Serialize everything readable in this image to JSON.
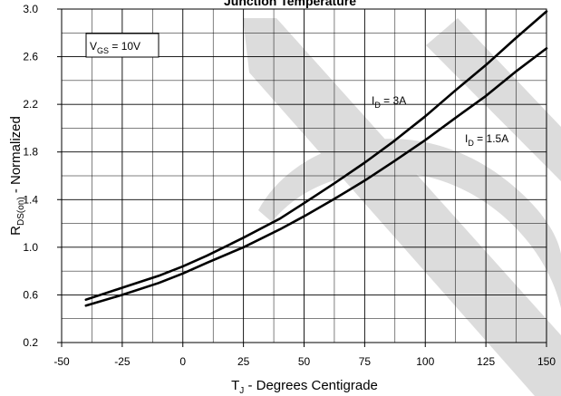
{
  "chart_data": {
    "type": "line",
    "title": "Junction Temperature",
    "xlabel": {
      "main": "T",
      "sub": "J",
      "rest": " - Degrees Centigrade"
    },
    "ylabel": {
      "main": "R",
      "sub": "DS(on)",
      "rest": " - Normalized"
    },
    "xlim": [
      -50,
      150
    ],
    "ylim": [
      0.2,
      3.0
    ],
    "x_ticks": [
      -50,
      -25,
      0,
      25,
      50,
      75,
      100,
      125,
      150
    ],
    "y_ticks": [
      0.2,
      0.6,
      1.0,
      1.4,
      1.8,
      2.2,
      2.6,
      3.0
    ],
    "x_tick_labels": [
      "-50",
      "-25",
      "0",
      "25",
      "50",
      "75",
      "100",
      "125",
      "150"
    ],
    "y_tick_labels": [
      "0.2",
      "0.6",
      "1.0",
      "1.4",
      "1.8",
      "2.2",
      "2.6",
      "3.0"
    ],
    "grid": true,
    "minor_grid_x_step": 12.5,
    "minor_grid_y_step": 0.2,
    "legend_box": {
      "main": "V",
      "sub": "GS",
      "rest": " = 10V"
    },
    "series": [
      {
        "name": "I_D = 3A",
        "label": {
          "main": "I",
          "sub": "D",
          "rest": " = 3A"
        },
        "x": [
          -40,
          -25,
          -10,
          0,
          10,
          25,
          40,
          50,
          62,
          75,
          87,
          100,
          112,
          125,
          137,
          150
        ],
        "y": [
          0.56,
          0.66,
          0.76,
          0.84,
          0.93,
          1.08,
          1.24,
          1.37,
          1.53,
          1.71,
          1.89,
          2.1,
          2.31,
          2.53,
          2.75,
          2.98
        ]
      },
      {
        "name": "I_D = 1.5A",
        "label": {
          "main": "I",
          "sub": "D",
          "rest": " = 1.5A"
        },
        "x": [
          -40,
          -25,
          -10,
          0,
          10,
          25,
          40,
          50,
          62,
          75,
          87,
          100,
          112,
          125,
          137,
          150
        ],
        "y": [
          0.51,
          0.6,
          0.7,
          0.78,
          0.87,
          1.0,
          1.15,
          1.26,
          1.4,
          1.56,
          1.72,
          1.9,
          2.08,
          2.27,
          2.47,
          2.67
        ]
      }
    ]
  }
}
